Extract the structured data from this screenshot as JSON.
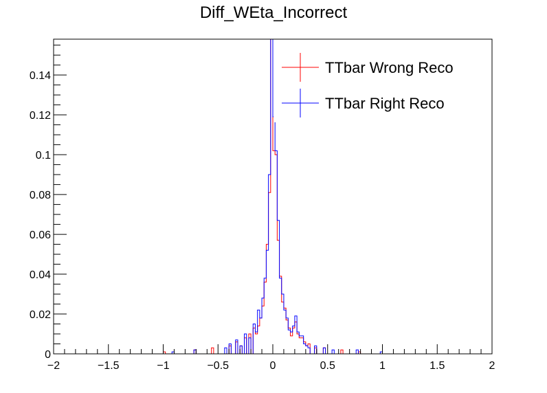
{
  "chart_data": {
    "type": "histogram",
    "title": "Diff_WEta_Incorrect",
    "xlabel": "",
    "ylabel": "",
    "xlim": [
      -2,
      2
    ],
    "ylim": [
      0,
      0.158
    ],
    "bin_width": 0.02,
    "xticks": [
      -2,
      -1.5,
      -1,
      -0.5,
      0,
      0.5,
      1,
      1.5,
      2
    ],
    "xtick_labels": [
      "−2",
      "−1.5",
      "−1",
      "−0.5",
      "0",
      "0.5",
      "1",
      "1.5",
      "2"
    ],
    "yticks": [
      0,
      0.02,
      0.04,
      0.06,
      0.08,
      0.1,
      0.12,
      0.14
    ],
    "ytick_labels": [
      "0",
      "0.02",
      "0.04",
      "0.06",
      "0.08",
      "0.1",
      "0.12",
      "0.14"
    ],
    "legend_position": "top-right",
    "grid": false,
    "series": [
      {
        "name": "TTbar Wrong Reco",
        "color": "#ff0000",
        "points": [
          {
            "x": -0.99,
            "y": 0.001
          },
          {
            "x": -0.71,
            "y": 0.002
          },
          {
            "x": -0.55,
            "y": 0.003
          },
          {
            "x": -0.39,
            "y": 0.004
          },
          {
            "x": -0.33,
            "y": 0.006
          },
          {
            "x": -0.29,
            "y": 0.004
          },
          {
            "x": -0.25,
            "y": 0.008
          },
          {
            "x": -0.21,
            "y": 0.01
          },
          {
            "x": -0.17,
            "y": 0.013
          },
          {
            "x": -0.15,
            "y": 0.01
          },
          {
            "x": -0.13,
            "y": 0.014
          },
          {
            "x": -0.11,
            "y": 0.018
          },
          {
            "x": -0.09,
            "y": 0.024
          },
          {
            "x": -0.07,
            "y": 0.036
          },
          {
            "x": -0.05,
            "y": 0.055
          },
          {
            "x": -0.03,
            "y": 0.081
          },
          {
            "x": -0.01,
            "y": 0.158
          },
          {
            "x": 0.01,
            "y": 0.102
          },
          {
            "x": 0.03,
            "y": 0.1
          },
          {
            "x": 0.05,
            "y": 0.057
          },
          {
            "x": 0.07,
            "y": 0.039
          },
          {
            "x": 0.09,
            "y": 0.026
          },
          {
            "x": 0.11,
            "y": 0.023
          },
          {
            "x": 0.13,
            "y": 0.017
          },
          {
            "x": 0.15,
            "y": 0.013
          },
          {
            "x": 0.17,
            "y": 0.009
          },
          {
            "x": 0.19,
            "y": 0.013
          },
          {
            "x": 0.21,
            "y": 0.016
          },
          {
            "x": 0.23,
            "y": 0.01
          },
          {
            "x": 0.25,
            "y": 0.008
          },
          {
            "x": 0.27,
            "y": 0.008
          },
          {
            "x": 0.29,
            "y": 0.006
          },
          {
            "x": 0.31,
            "y": 0.004
          },
          {
            "x": 0.33,
            "y": 0.005
          },
          {
            "x": 0.39,
            "y": 0.003
          },
          {
            "x": 0.47,
            "y": 0.003
          },
          {
            "x": 0.63,
            "y": 0.002
          },
          {
            "x": 0.79,
            "y": 0.001
          }
        ]
      },
      {
        "name": "TTbar Right Reco",
        "color": "#0000ff",
        "points": [
          {
            "x": -0.91,
            "y": 0.001
          },
          {
            "x": -0.71,
            "y": 0.002
          },
          {
            "x": -0.43,
            "y": 0.003
          },
          {
            "x": -0.39,
            "y": 0.005
          },
          {
            "x": -0.33,
            "y": 0.007
          },
          {
            "x": -0.29,
            "y": 0.004
          },
          {
            "x": -0.25,
            "y": 0.01
          },
          {
            "x": -0.21,
            "y": 0.008
          },
          {
            "x": -0.17,
            "y": 0.015
          },
          {
            "x": -0.15,
            "y": 0.011
          },
          {
            "x": -0.13,
            "y": 0.022
          },
          {
            "x": -0.11,
            "y": 0.018
          },
          {
            "x": -0.09,
            "y": 0.028
          },
          {
            "x": -0.07,
            "y": 0.038
          },
          {
            "x": -0.05,
            "y": 0.052
          },
          {
            "x": -0.03,
            "y": 0.09
          },
          {
            "x": -0.01,
            "y": 0.158
          },
          {
            "x": 0.01,
            "y": 0.119
          },
          {
            "x": 0.03,
            "y": 0.102
          },
          {
            "x": 0.05,
            "y": 0.067
          },
          {
            "x": 0.07,
            "y": 0.038
          },
          {
            "x": 0.09,
            "y": 0.03
          },
          {
            "x": 0.11,
            "y": 0.022
          },
          {
            "x": 0.13,
            "y": 0.018
          },
          {
            "x": 0.15,
            "y": 0.012
          },
          {
            "x": 0.17,
            "y": 0.011
          },
          {
            "x": 0.19,
            "y": 0.014
          },
          {
            "x": 0.21,
            "y": 0.019
          },
          {
            "x": 0.23,
            "y": 0.011
          },
          {
            "x": 0.25,
            "y": 0.009
          },
          {
            "x": 0.27,
            "y": 0.009
          },
          {
            "x": 0.29,
            "y": 0.005
          },
          {
            "x": 0.31,
            "y": 0.004
          },
          {
            "x": 0.33,
            "y": 0.003
          },
          {
            "x": 0.39,
            "y": 0.004
          },
          {
            "x": 0.47,
            "y": 0.003
          },
          {
            "x": 0.55,
            "y": 0.002
          },
          {
            "x": 0.77,
            "y": 0.002
          },
          {
            "x": 0.99,
            "y": 0.001
          }
        ]
      }
    ]
  }
}
